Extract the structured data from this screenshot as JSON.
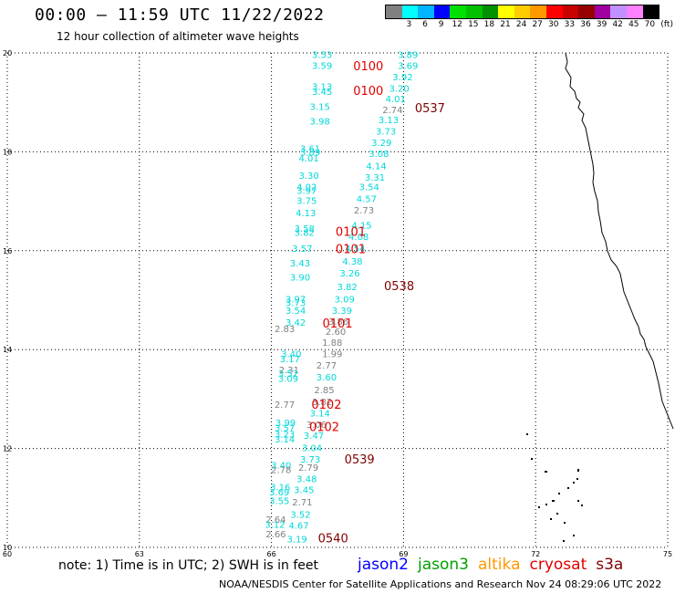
{
  "header": {
    "title": "00:00 — 11:59 UTC 11/22/2022",
    "subtitle": "12 hour collection of altimeter wave heights"
  },
  "colorbar": {
    "unit_label": "(ft)",
    "swatches": [
      {
        "color": "#808080",
        "label": ""
      },
      {
        "color": "#00ffff",
        "label": "3"
      },
      {
        "color": "#00b4ff",
        "label": "6"
      },
      {
        "color": "#0000ff",
        "label": "9"
      },
      {
        "color": "#00e000",
        "label": "12"
      },
      {
        "color": "#00c000",
        "label": "15"
      },
      {
        "color": "#009000",
        "label": "18"
      },
      {
        "color": "#ffff00",
        "label": "21"
      },
      {
        "color": "#ffcc00",
        "label": "24"
      },
      {
        "color": "#ff9900",
        "label": "27"
      },
      {
        "color": "#ff0000",
        "label": "30"
      },
      {
        "color": "#c80000",
        "label": "33"
      },
      {
        "color": "#960000",
        "label": "36"
      },
      {
        "color": "#a000a0",
        "label": "39"
      },
      {
        "color": "#c090ff",
        "label": "42"
      },
      {
        "color": "#ff80ff",
        "label": "45"
      },
      {
        "color": "#000000",
        "label": "70"
      }
    ]
  },
  "chart_data": {
    "type": "scatter",
    "lon_range": [
      60,
      75
    ],
    "lat_range": [
      10,
      20
    ],
    "lon_ticks": [
      60,
      63,
      66,
      69,
      72,
      75
    ],
    "lat_ticks": [
      10,
      12,
      14,
      16,
      18,
      20
    ],
    "grid": true,
    "passes": [
      {
        "label": "0100",
        "color": "#e00000",
        "lon": 68.2,
        "lat": 19.65
      },
      {
        "label": "0100",
        "color": "#e00000",
        "lon": 68.2,
        "lat": 19.15
      },
      {
        "label": "0537",
        "color": "#800000",
        "lon": 69.6,
        "lat": 18.8
      },
      {
        "label": "0101",
        "color": "#e00000",
        "lon": 67.8,
        "lat": 16.3
      },
      {
        "label": "0101",
        "color": "#e00000",
        "lon": 67.8,
        "lat": 15.95
      },
      {
        "label": "0538",
        "color": "#800000",
        "lon": 68.9,
        "lat": 15.2
      },
      {
        "label": "0101",
        "color": "#e00000",
        "lon": 67.5,
        "lat": 14.45
      },
      {
        "label": "0102",
        "color": "#e00000",
        "lon": 67.25,
        "lat": 12.8
      },
      {
        "label": "0102",
        "color": "#e00000",
        "lon": 67.2,
        "lat": 12.35
      },
      {
        "label": "0539",
        "color": "#800000",
        "lon": 68.0,
        "lat": 11.7
      },
      {
        "label": "0540",
        "color": "#800000",
        "lon": 67.4,
        "lat": 10.1
      }
    ],
    "wave_heights": [
      {
        "v": "3.53",
        "lon": 67.15,
        "lat": 19.9,
        "c": "#00d8d8"
      },
      {
        "v": "3.59",
        "lon": 67.15,
        "lat": 19.68,
        "c": "#00d8d8"
      },
      {
        "v": "3.13",
        "lon": 67.15,
        "lat": 19.25,
        "c": "#00d8d8"
      },
      {
        "v": "3.45",
        "lon": 67.15,
        "lat": 19.15,
        "c": "#00d8d8"
      },
      {
        "v": "3.15",
        "lon": 67.1,
        "lat": 18.85,
        "c": "#00d8d8"
      },
      {
        "v": "3.98",
        "lon": 67.1,
        "lat": 18.55,
        "c": "#00d8d8"
      },
      {
        "v": "3.89",
        "lon": 69.1,
        "lat": 19.9,
        "c": "#00d8d8"
      },
      {
        "v": "3.69",
        "lon": 69.1,
        "lat": 19.68,
        "c": "#00d8d8"
      },
      {
        "v": "3.92",
        "lon": 68.98,
        "lat": 19.45,
        "c": "#00d8d8"
      },
      {
        "v": "3.20",
        "lon": 68.9,
        "lat": 19.22,
        "c": "#00d8d8"
      },
      {
        "v": "4.01",
        "lon": 68.82,
        "lat": 19.0,
        "c": "#00d8d8"
      },
      {
        "v": "2.74",
        "lon": 68.75,
        "lat": 18.78,
        "c": "#808080"
      },
      {
        "v": "3.13",
        "lon": 68.66,
        "lat": 18.58,
        "c": "#00d8d8"
      },
      {
        "v": "3.73",
        "lon": 68.6,
        "lat": 18.35,
        "c": "#00d8d8"
      },
      {
        "v": "3.29",
        "lon": 68.5,
        "lat": 18.12,
        "c": "#00d8d8"
      },
      {
        "v": "3.08",
        "lon": 68.44,
        "lat": 17.9,
        "c": "#00d8d8"
      },
      {
        "v": "4.14",
        "lon": 68.38,
        "lat": 17.65,
        "c": "#00d8d8"
      },
      {
        "v": "3.31",
        "lon": 68.35,
        "lat": 17.42,
        "c": "#00d8d8"
      },
      {
        "v": "3.54",
        "lon": 68.22,
        "lat": 17.22,
        "c": "#00d8d8"
      },
      {
        "v": "4.57",
        "lon": 68.16,
        "lat": 16.98,
        "c": "#00d8d8"
      },
      {
        "v": "2.73",
        "lon": 68.1,
        "lat": 16.75,
        "c": "#808080"
      },
      {
        "v": "4.15",
        "lon": 68.05,
        "lat": 16.45,
        "c": "#00d8d8"
      },
      {
        "v": "4.08",
        "lon": 67.98,
        "lat": 16.22,
        "c": "#00d8d8"
      },
      {
        "v": "4.54",
        "lon": 67.9,
        "lat": 15.98,
        "c": "#00d8d8"
      },
      {
        "v": "4.38",
        "lon": 67.84,
        "lat": 15.72,
        "c": "#00d8d8"
      },
      {
        "v": "3.26",
        "lon": 67.78,
        "lat": 15.48,
        "c": "#00d8d8"
      },
      {
        "v": "3.82",
        "lon": 67.72,
        "lat": 15.2,
        "c": "#00d8d8"
      },
      {
        "v": "3.09",
        "lon": 67.66,
        "lat": 14.95,
        "c": "#00d8d8"
      },
      {
        "v": "3.39",
        "lon": 67.6,
        "lat": 14.72,
        "c": "#00d8d8"
      },
      {
        "v": "3.86",
        "lon": 67.52,
        "lat": 14.5,
        "c": "#808080"
      },
      {
        "v": "2.60",
        "lon": 67.46,
        "lat": 14.3,
        "c": "#808080"
      },
      {
        "v": "1.88",
        "lon": 67.38,
        "lat": 14.08,
        "c": "#808080"
      },
      {
        "v": "1.99",
        "lon": 67.38,
        "lat": 13.85,
        "c": "#808080"
      },
      {
        "v": "2.77",
        "lon": 67.25,
        "lat": 13.62,
        "c": "#808080"
      },
      {
        "v": "3.60",
        "lon": 67.25,
        "lat": 13.38,
        "c": "#00d8d8"
      },
      {
        "v": "2.85",
        "lon": 67.2,
        "lat": 13.12,
        "c": "#808080"
      },
      {
        "v": "3.82",
        "lon": 67.15,
        "lat": 12.88,
        "c": "#808080"
      },
      {
        "v": "3.14",
        "lon": 67.1,
        "lat": 12.65,
        "c": "#00d8d8"
      },
      {
        "v": "3.06",
        "lon": 67.02,
        "lat": 12.42,
        "c": "#808080"
      },
      {
        "v": "3.47",
        "lon": 66.96,
        "lat": 12.2,
        "c": "#00d8d8"
      },
      {
        "v": "3.04",
        "lon": 66.92,
        "lat": 11.95,
        "c": "#00d8d8"
      },
      {
        "v": "3.73",
        "lon": 66.88,
        "lat": 11.72,
        "c": "#00d8d8"
      },
      {
        "v": "2.79",
        "lon": 66.84,
        "lat": 11.55,
        "c": "#808080"
      },
      {
        "v": "3.48",
        "lon": 66.8,
        "lat": 11.32,
        "c": "#00d8d8"
      },
      {
        "v": "3.45",
        "lon": 66.74,
        "lat": 11.1,
        "c": "#00d8d8"
      },
      {
        "v": "2.71",
        "lon": 66.7,
        "lat": 10.85,
        "c": "#808080"
      },
      {
        "v": "3.52",
        "lon": 66.66,
        "lat": 10.6,
        "c": "#00d8d8"
      },
      {
        "v": "4.67",
        "lon": 66.62,
        "lat": 10.38,
        "c": "#00d8d8"
      },
      {
        "v": "3.19",
        "lon": 66.58,
        "lat": 10.1,
        "c": "#00d8d8"
      },
      {
        "v": "3.61",
        "lon": 66.88,
        "lat": 18.0,
        "c": "#00d8d8"
      },
      {
        "v": "3.89",
        "lon": 66.88,
        "lat": 17.92,
        "c": "#00d8d8"
      },
      {
        "v": "4.01",
        "lon": 66.85,
        "lat": 17.8,
        "c": "#00d8d8"
      },
      {
        "v": "3.30",
        "lon": 66.85,
        "lat": 17.45,
        "c": "#00d8d8"
      },
      {
        "v": "4.02",
        "lon": 66.8,
        "lat": 17.22,
        "c": "#00d8d8"
      },
      {
        "v": "3.97",
        "lon": 66.8,
        "lat": 17.15,
        "c": "#00d8d8"
      },
      {
        "v": "3.75",
        "lon": 66.8,
        "lat": 16.95,
        "c": "#00d8d8"
      },
      {
        "v": "4.13",
        "lon": 66.78,
        "lat": 16.7,
        "c": "#00d8d8"
      },
      {
        "v": "3.58",
        "lon": 66.75,
        "lat": 16.38,
        "c": "#00d8d8"
      },
      {
        "v": "3.82",
        "lon": 66.75,
        "lat": 16.3,
        "c": "#00d8d8"
      },
      {
        "v": "3.57",
        "lon": 66.7,
        "lat": 15.98,
        "c": "#00d8d8"
      },
      {
        "v": "3.43",
        "lon": 66.65,
        "lat": 15.68,
        "c": "#00d8d8"
      },
      {
        "v": "3.90",
        "lon": 66.65,
        "lat": 15.4,
        "c": "#00d8d8"
      },
      {
        "v": "3.97",
        "lon": 66.55,
        "lat": 14.95,
        "c": "#00d8d8"
      },
      {
        "v": "3.73",
        "lon": 66.55,
        "lat": 14.88,
        "c": "#00d8d8"
      },
      {
        "v": "3.54",
        "lon": 66.55,
        "lat": 14.72,
        "c": "#00d8d8"
      },
      {
        "v": "3.42",
        "lon": 66.55,
        "lat": 14.48,
        "c": "#00d8d8"
      },
      {
        "v": "2.83",
        "lon": 66.3,
        "lat": 14.35,
        "c": "#808080"
      },
      {
        "v": "3.40",
        "lon": 66.45,
        "lat": 13.85,
        "c": "#00d8d8"
      },
      {
        "v": "3.17",
        "lon": 66.42,
        "lat": 13.75,
        "c": "#00d8d8"
      },
      {
        "v": "2.31",
        "lon": 66.4,
        "lat": 13.52,
        "c": "#808080"
      },
      {
        "v": "3.52",
        "lon": 66.38,
        "lat": 13.45,
        "c": "#00d8d8"
      },
      {
        "v": "3.09",
        "lon": 66.38,
        "lat": 13.35,
        "c": "#00d8d8"
      },
      {
        "v": "2.77",
        "lon": 66.3,
        "lat": 12.82,
        "c": "#808080"
      },
      {
        "v": "3.99",
        "lon": 66.32,
        "lat": 12.45,
        "c": "#00d8d8"
      },
      {
        "v": "3.57",
        "lon": 66.3,
        "lat": 12.35,
        "c": "#00d8d8"
      },
      {
        "v": "3.23",
        "lon": 66.3,
        "lat": 12.22,
        "c": "#00d8d8"
      },
      {
        "v": "3.14",
        "lon": 66.3,
        "lat": 12.12,
        "c": "#00d8d8"
      },
      {
        "v": "3.40",
        "lon": 66.22,
        "lat": 11.6,
        "c": "#00d8d8"
      },
      {
        "v": "2.78",
        "lon": 66.22,
        "lat": 11.5,
        "c": "#808080"
      },
      {
        "v": "3.16",
        "lon": 66.2,
        "lat": 11.15,
        "c": "#00d8d8"
      },
      {
        "v": "3.69",
        "lon": 66.18,
        "lat": 11.05,
        "c": "#00d8d8"
      },
      {
        "v": "3.55",
        "lon": 66.18,
        "lat": 10.88,
        "c": "#00d8d8"
      },
      {
        "v": "2.64",
        "lon": 66.1,
        "lat": 10.5,
        "c": "#808080"
      },
      {
        "v": "3.12",
        "lon": 66.08,
        "lat": 10.4,
        "c": "#00d8d8"
      },
      {
        "v": "2.66",
        "lon": 66.1,
        "lat": 10.2,
        "c": "#808080"
      }
    ]
  },
  "note": "note: 1) Time is in UTC; 2) SWH is in feet",
  "satellites": [
    {
      "name": "jason2",
      "color": "#0000ff"
    },
    {
      "name": "jason3",
      "color": "#00a000"
    },
    {
      "name": "altika",
      "color": "#ff9900"
    },
    {
      "name": "cryosat",
      "color": "#e00000"
    },
    {
      "name": "s3a",
      "color": "#800000"
    }
  ],
  "credit": "NOAA/NESDIS Center for Satellite Applications and Research    Nov 24 08:29:06 UTC 2022"
}
